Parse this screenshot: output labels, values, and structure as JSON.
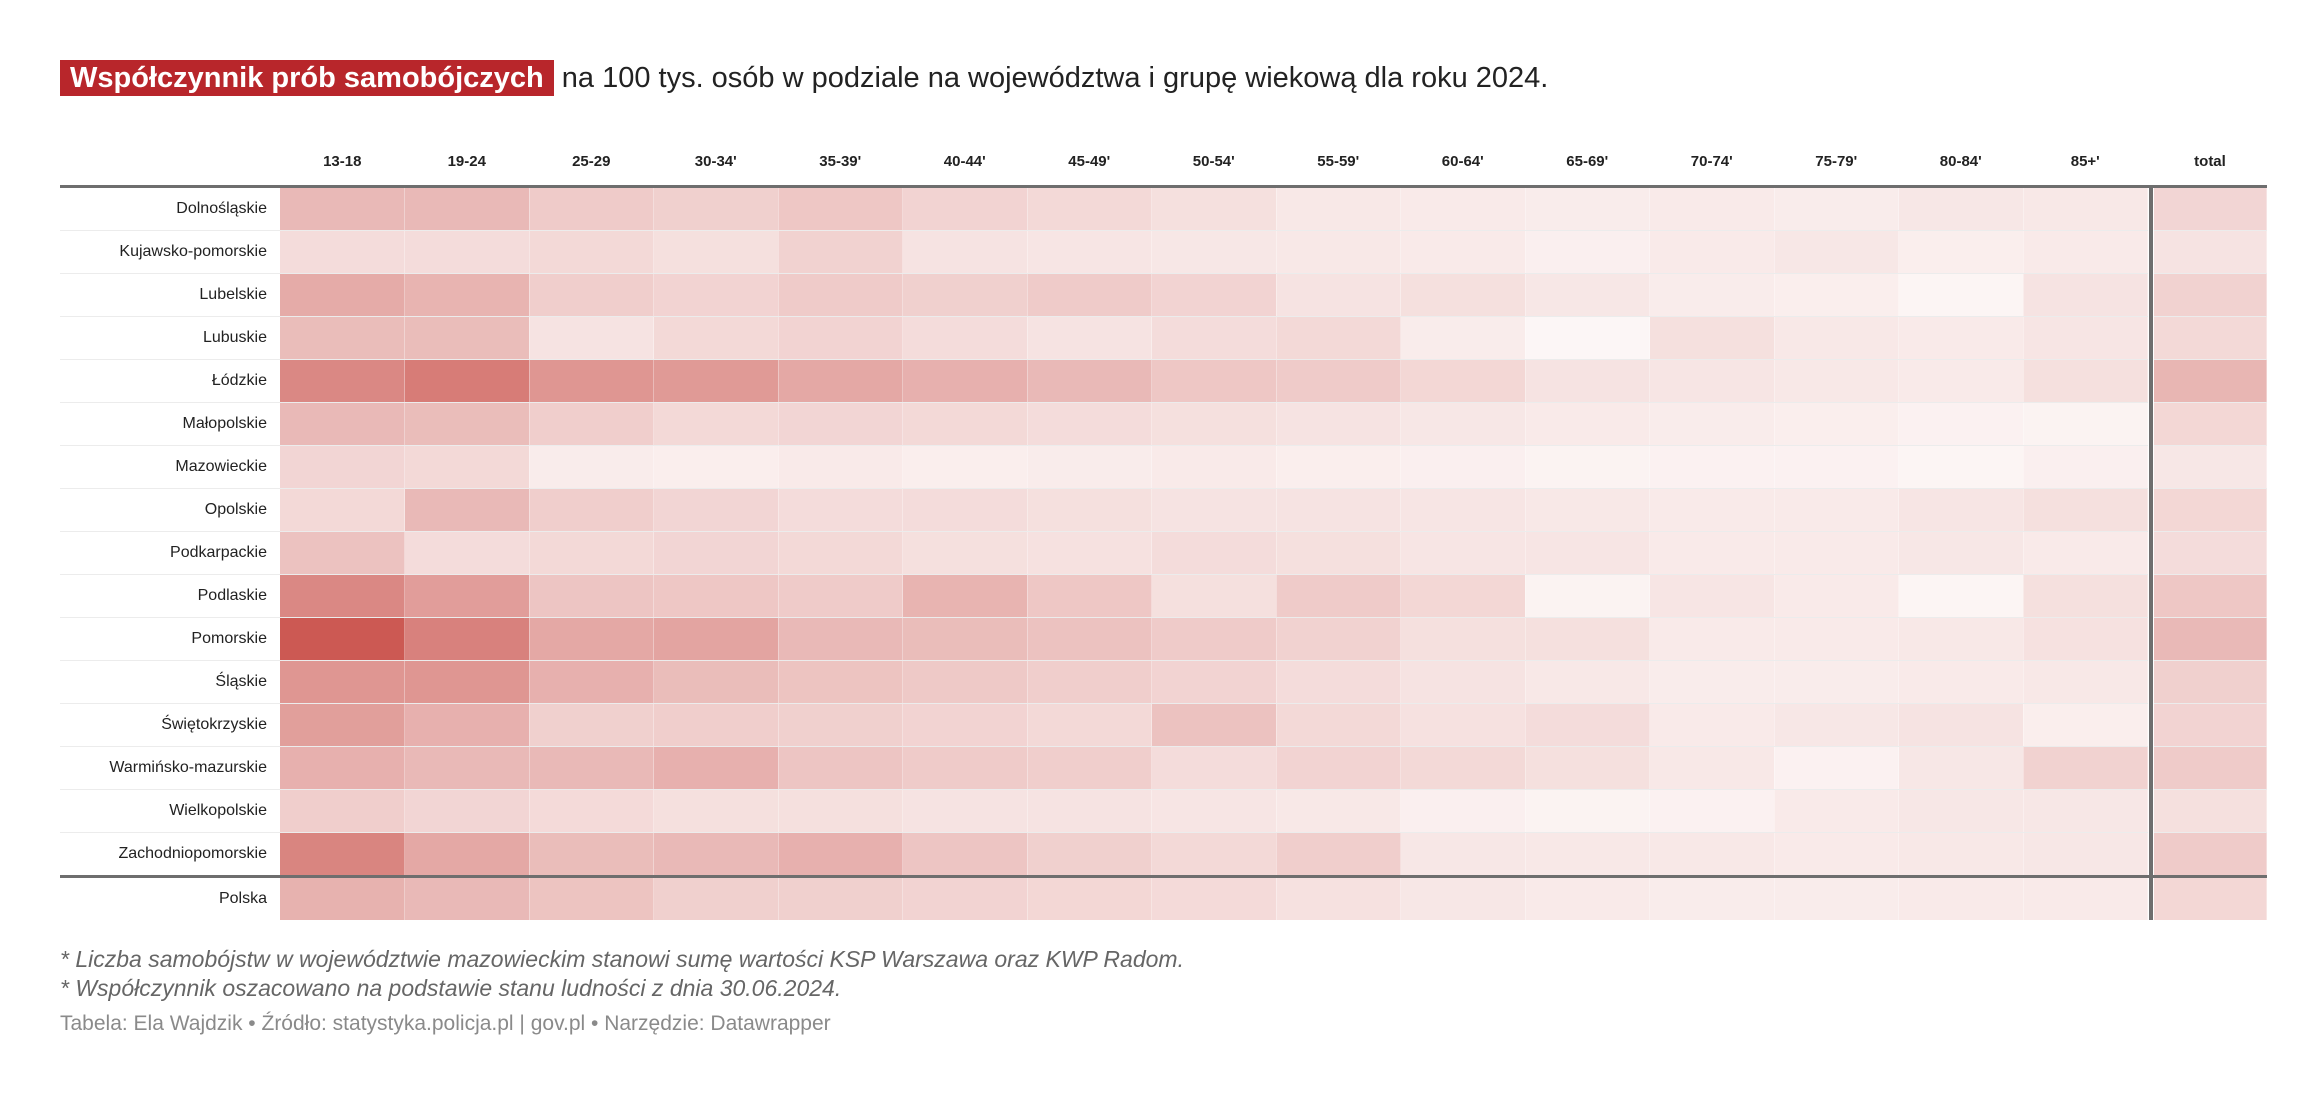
{
  "title": {
    "highlight": "Współczynnik prób samobójczych",
    "rest": "na 100 tys. osób w podziale na województwa i grupę wiekową dla roku 2024."
  },
  "colors": {
    "accent": "#b8262b",
    "heat_low": "#ffffff",
    "heat_high": "#c9504a"
  },
  "chart_data": {
    "type": "heatmap",
    "columns": [
      "13-18",
      "19-24",
      "25-29",
      "30-34'",
      "35-39'",
      "40-44'",
      "45-49'",
      "50-54'",
      "55-59'",
      "60-64'",
      "65-69'",
      "70-74'",
      "75-79'",
      "80-84'",
      "85+'"
    ],
    "total_column": "total",
    "rows": [
      {
        "name": "Dolnośląskie",
        "values": [
          40,
          40,
          30,
          27,
          32,
          25,
          22,
          18,
          13,
          12,
          11,
          12,
          11,
          14,
          13
        ],
        "total": 24
      },
      {
        "name": "Kujawsko-pomorskie",
        "values": [
          20,
          20,
          22,
          18,
          26,
          16,
          15,
          14,
          13,
          12,
          9,
          12,
          14,
          10,
          12
        ],
        "total": 16
      },
      {
        "name": "Lubelskie",
        "values": [
          48,
          43,
          28,
          25,
          30,
          27,
          30,
          25,
          16,
          18,
          14,
          11,
          10,
          6,
          16
        ],
        "total": 26
      },
      {
        "name": "Lubuskie",
        "values": [
          38,
          38,
          16,
          22,
          25,
          20,
          16,
          20,
          22,
          11,
          5,
          18,
          13,
          12,
          15
        ],
        "total": 22
      },
      {
        "name": "Łódzkie",
        "values": [
          68,
          75,
          60,
          58,
          50,
          45,
          40,
          32,
          30,
          23,
          16,
          15,
          13,
          12,
          18
        ],
        "total": 42
      },
      {
        "name": "Małopolskie",
        "values": [
          40,
          38,
          28,
          22,
          24,
          22,
          20,
          18,
          16,
          14,
          12,
          11,
          10,
          8,
          7
        ],
        "total": 23
      },
      {
        "name": "Mazowieckie",
        "values": [
          24,
          22,
          11,
          10,
          12,
          10,
          11,
          12,
          10,
          9,
          7,
          8,
          8,
          6,
          9
        ],
        "total": 14
      },
      {
        "name": "Opolskie",
        "values": [
          22,
          40,
          28,
          24,
          20,
          20,
          18,
          16,
          16,
          15,
          13,
          12,
          12,
          15,
          18
        ],
        "total": 23
      },
      {
        "name": "Podkarpackie",
        "values": [
          35,
          20,
          22,
          24,
          22,
          18,
          17,
          20,
          18,
          15,
          15,
          12,
          12,
          14,
          12
        ],
        "total": 20
      },
      {
        "name": "Podlaskie",
        "values": [
          68,
          56,
          33,
          32,
          30,
          43,
          32,
          18,
          30,
          23,
          7,
          15,
          12,
          6,
          18
        ],
        "total": 32
      },
      {
        "name": "Pomorskie",
        "values": [
          95,
          72,
          50,
          52,
          40,
          38,
          35,
          30,
          26,
          18,
          18,
          12,
          12,
          13,
          17
        ],
        "total": 40
      },
      {
        "name": "Śląskie",
        "values": [
          60,
          60,
          45,
          38,
          34,
          31,
          28,
          25,
          20,
          16,
          13,
          11,
          11,
          12,
          13
        ],
        "total": 27
      },
      {
        "name": "Świętokrzyskie",
        "values": [
          55,
          45,
          27,
          28,
          27,
          25,
          22,
          35,
          22,
          17,
          20,
          12,
          14,
          16,
          10
        ],
        "total": 25
      },
      {
        "name": "Warmińsko-mazurskie",
        "values": [
          45,
          40,
          40,
          45,
          33,
          30,
          28,
          20,
          25,
          22,
          18,
          13,
          8,
          14,
          26
        ],
        "total": 30
      },
      {
        "name": "Wielkopolskie",
        "values": [
          28,
          24,
          21,
          18,
          18,
          16,
          16,
          15,
          13,
          9,
          7,
          8,
          12,
          14,
          14
        ],
        "total": 18
      },
      {
        "name": "Zachodniopomorskie",
        "values": [
          70,
          50,
          38,
          40,
          45,
          33,
          27,
          22,
          28,
          14,
          13,
          13,
          12,
          13,
          14
        ],
        "total": 30
      }
    ],
    "summary_row": {
      "name": "Polska",
      "values": [
        44,
        40,
        34,
        27,
        27,
        25,
        23,
        21,
        17,
        14,
        12,
        11,
        11,
        12,
        12
      ],
      "total": 23
    },
    "scale": [
      0,
      100
    ]
  },
  "notes": [
    "* Liczba samobójstw w województwie mazowieckim stanowi sumę wartości KSP Warszawa oraz KWP Radom.",
    "* Współczynnik oszacowano na podstawie stanu ludności z dnia 30.06.2024."
  ],
  "source": "Tabela: Ela Wajdzik • Źródło: statystyka.policja.pl | gov.pl • Narzędzie: Datawrapper"
}
